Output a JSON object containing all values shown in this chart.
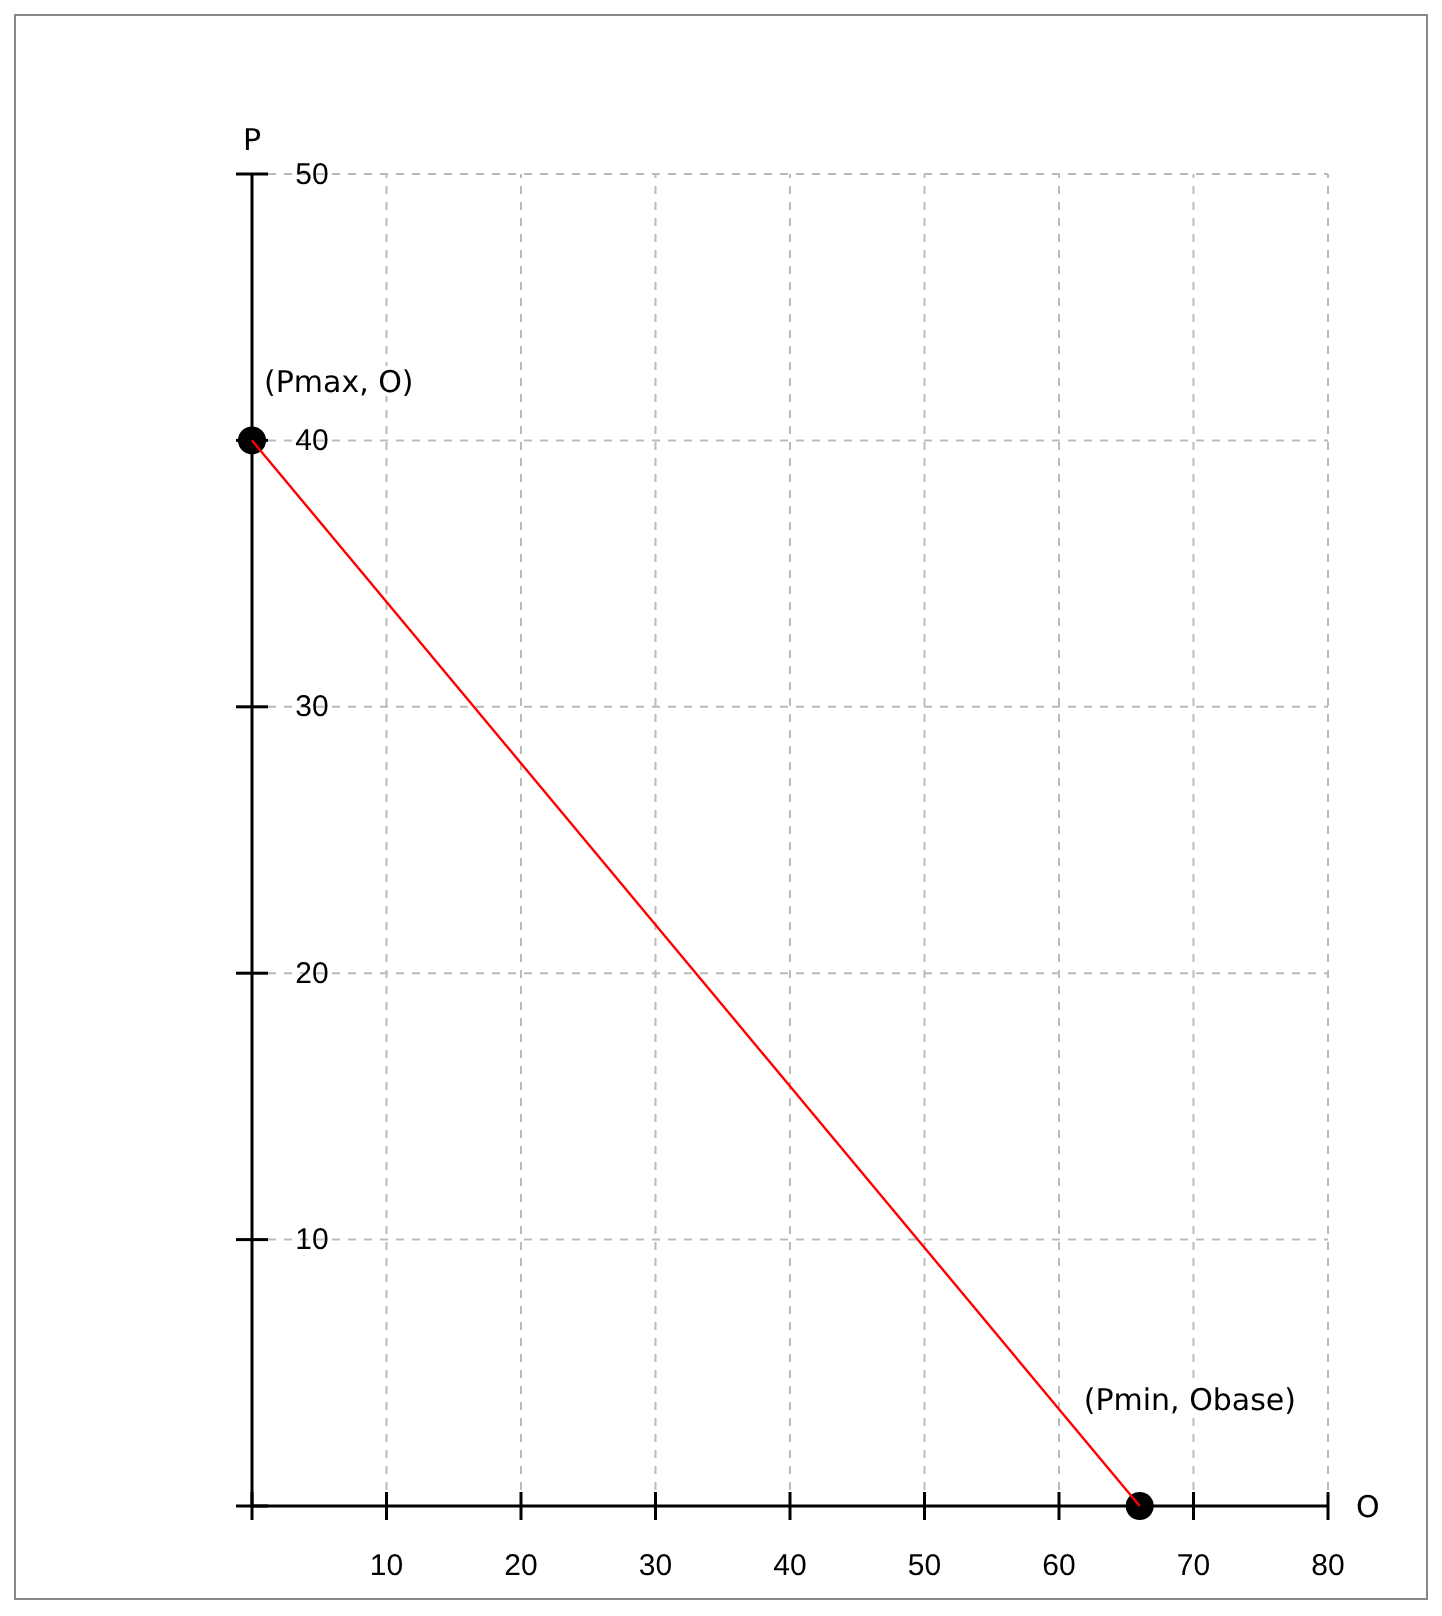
{
  "chart_data": {
    "type": "line",
    "xlabel": "O",
    "ylabel": "P",
    "xlim": [
      0,
      80
    ],
    "ylim": [
      0,
      50
    ],
    "xticks": [
      {
        "value": 0,
        "label": null
      },
      10,
      20,
      30,
      40,
      50,
      60,
      70,
      80
    ],
    "yticks": [
      {
        "value": 0,
        "label": null
      },
      10,
      20,
      30,
      40,
      50
    ],
    "grid": true,
    "x": [
      0,
      66
    ],
    "series": [
      {
        "color": "#ff0000",
        "values": [
          40,
          0
        ]
      },
      {
        "type": "scatter",
        "color": "#000000",
        "values": [
          40,
          0
        ],
        "marker": "circle"
      }
    ],
    "annotations": [
      {
        "text": "(Pmax, O)",
        "x": 0,
        "y": 40
      },
      {
        "text": "(Pmin, Obase)",
        "x": 66,
        "y": 0
      }
    ]
  }
}
